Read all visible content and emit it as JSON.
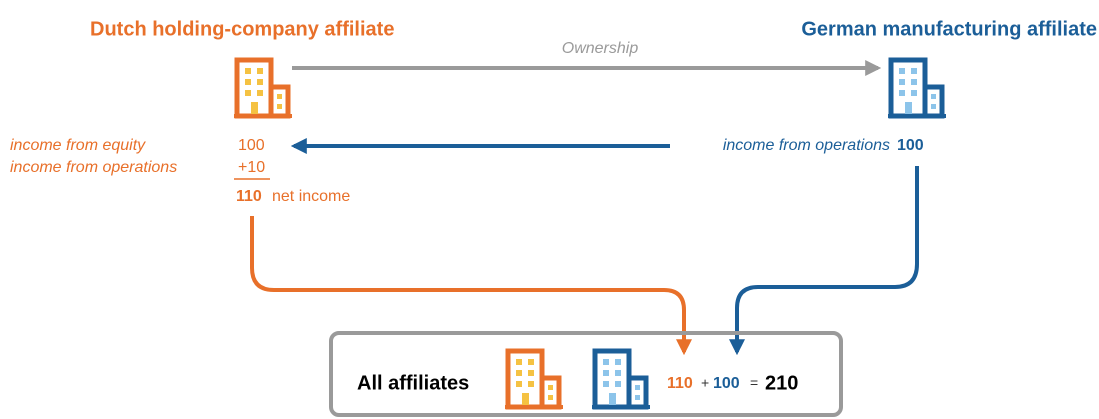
{
  "dutch": {
    "title": "Dutch holding-company affiliate",
    "equity_label": "income from equity",
    "equity_value": "100",
    "operations_label": "income from operations",
    "operations_value": "+10",
    "net_value": "110",
    "net_label": "net income"
  },
  "german": {
    "title": "German manufacturing affiliate",
    "operations_label": "income from operations",
    "operations_value": "100"
  },
  "ownership": "Ownership",
  "summary": {
    "label": "All affiliates",
    "dutch_value": "110",
    "plus": "+",
    "german_value": "100",
    "equals": "=",
    "total": "210"
  }
}
